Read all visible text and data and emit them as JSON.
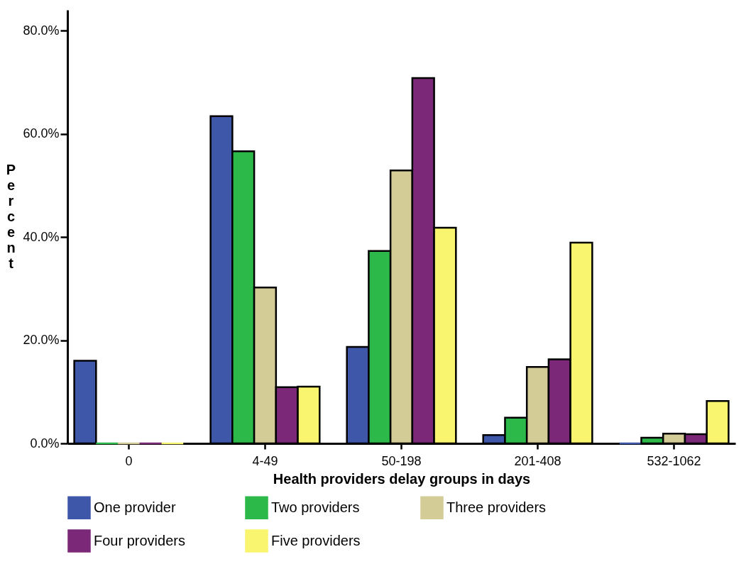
{
  "chart_data": {
    "type": "bar",
    "xlabel": "Health providers delay groups in days",
    "ylabel": "Percent",
    "categories": [
      "0",
      "4-49",
      "50-198",
      "201-408",
      "532-1062"
    ],
    "series": [
      {
        "name": "One provider",
        "color": "#3f57a8",
        "values": [
          16.0,
          63.4,
          18.7,
          1.6,
          0
        ]
      },
      {
        "name": "Two providers",
        "color": "#2db84a",
        "values": [
          0,
          56.6,
          37.3,
          5.0,
          1.1
        ]
      },
      {
        "name": "Three providers",
        "color": "#d3cc96",
        "values": [
          0,
          30.2,
          52.9,
          14.8,
          1.9
        ]
      },
      {
        "name": "Four providers",
        "color": "#7b2878",
        "values": [
          0,
          10.9,
          70.8,
          16.3,
          1.8
        ]
      },
      {
        "name": "Five providers",
        "color": "#f9f56f",
        "values": [
          0,
          11.0,
          41.8,
          38.9,
          8.2
        ]
      }
    ],
    "ylim": [
      0,
      84
    ],
    "yticks": [
      {
        "value": 0,
        "label": "0.0%"
      },
      {
        "value": 20,
        "label": "20.0%"
      },
      {
        "value": 40,
        "label": "40.0%"
      },
      {
        "value": 60,
        "label": "60.0%"
      },
      {
        "value": 80,
        "label": "80.0%"
      }
    ],
    "grid": false,
    "legend": "bottom"
  }
}
